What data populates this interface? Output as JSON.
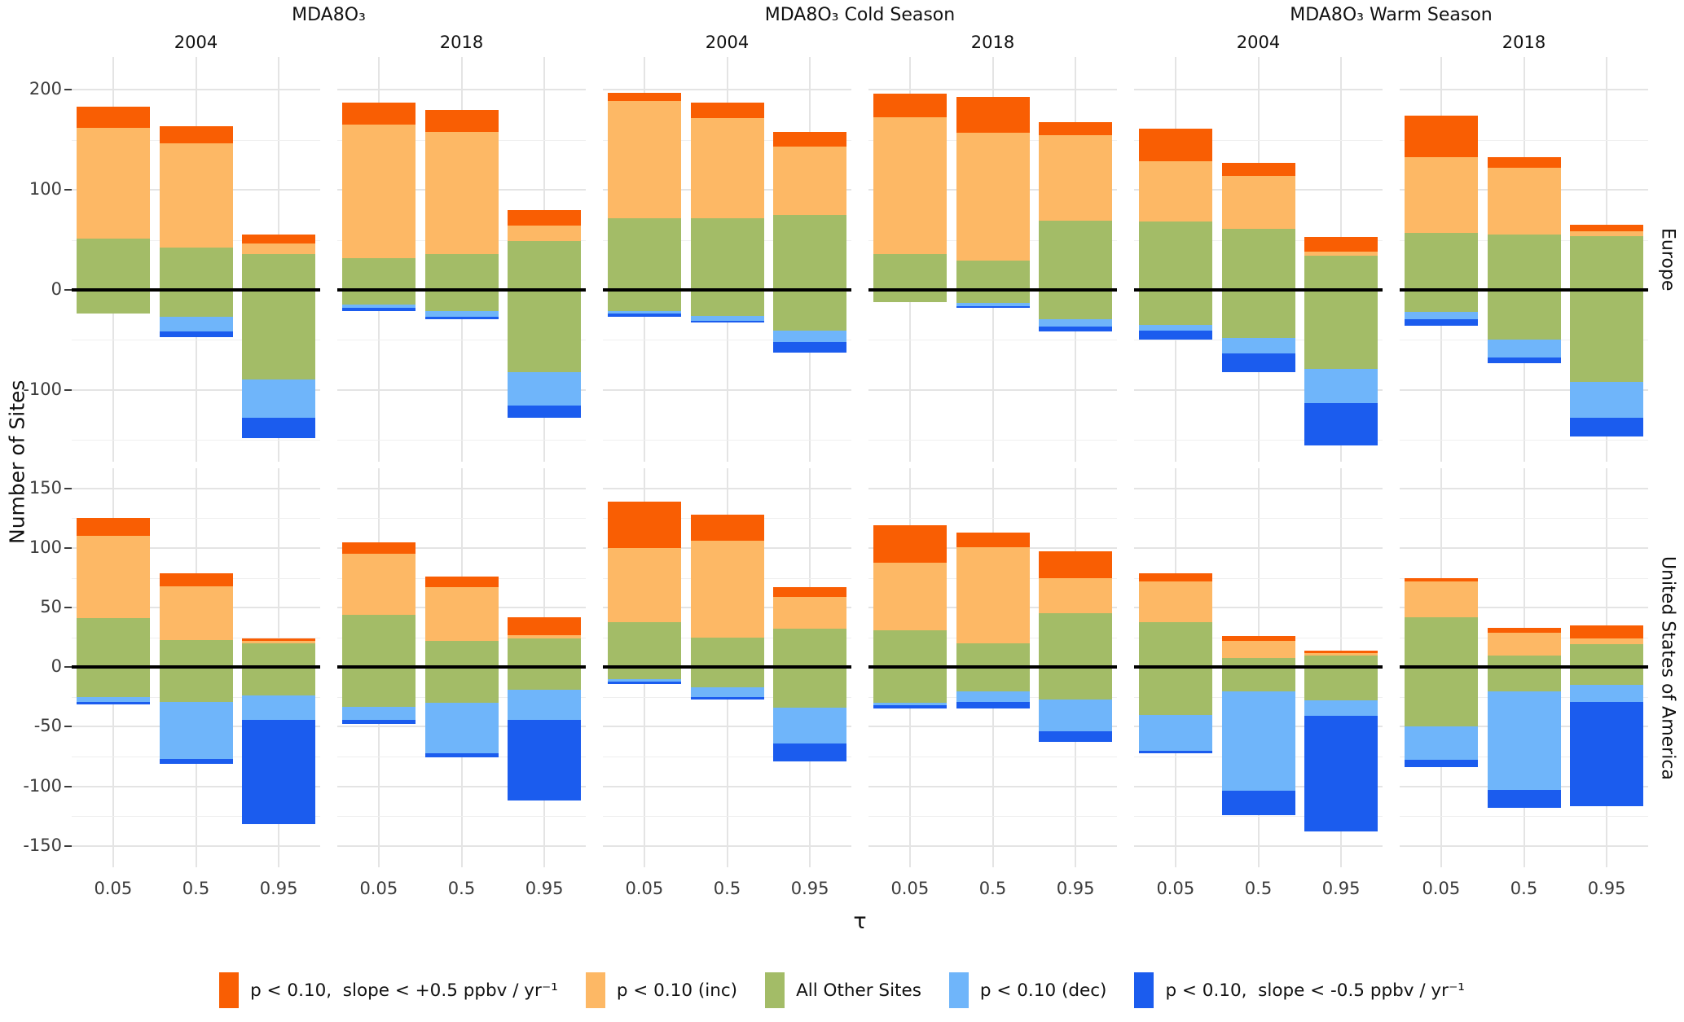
{
  "figure": {
    "column_groups": [
      "MDA8O₃",
      "MDA8O₃ Cold Season",
      "MDA8O₃ Warm Season"
    ],
    "years": [
      "2004",
      "2018",
      "2004",
      "2018",
      "2004",
      "2018"
    ],
    "row_labels": [
      "Europe",
      "United States of America"
    ],
    "y_label": "Number of Sites",
    "x_label": "τ",
    "x_ticks": [
      "0.05",
      "0.5",
      "0.95"
    ]
  },
  "colors": {
    "strong_inc": "#F95E03",
    "inc": "#FDB865",
    "other": "#A3BC67",
    "dec": "#6FB5FA",
    "strong_dec": "#1B5CEE",
    "zero_line": "#000000",
    "grid_major": "#e4e4e4",
    "grid_minor": "#efefef"
  },
  "legend": {
    "items": [
      {
        "key": "strong_inc",
        "label": "p < 0.10,  slope < +0.5 ppbv / yr⁻¹",
        "color": "#F95E03"
      },
      {
        "key": "inc",
        "label": "p < 0.10 (inc)",
        "color": "#FDB865"
      },
      {
        "key": "other",
        "label": "All Other Sites",
        "color": "#A3BC67"
      },
      {
        "key": "dec",
        "label": "p < 0.10 (dec)",
        "color": "#6FB5FA"
      },
      {
        "key": "strong_dec",
        "label": "p < 0.10,  slope < -0.5 ppbv / yr⁻¹",
        "color": "#1B5CEE"
      }
    ]
  },
  "chart_data": {
    "type": "bar",
    "variant": "diverging-stacked",
    "title": "",
    "xlabel": "τ",
    "ylabel": "Number of Sites",
    "x_categories": [
      "0.05",
      "0.5",
      "0.95"
    ],
    "segment_order_positive": [
      "other_pos",
      "inc",
      "strong_inc"
    ],
    "segment_order_negative": [
      "other_neg",
      "dec",
      "strong_dec"
    ],
    "rows": [
      {
        "name": "Europe",
        "ylim": [
          -172,
          233
        ],
        "major_ticks": [
          200,
          100,
          0,
          -100
        ],
        "minor_ticks": [
          150,
          50,
          -50,
          -150
        ]
      },
      {
        "name": "United States of America",
        "ylim": [
          -168,
          167
        ],
        "major_ticks": [
          150,
          100,
          50,
          0,
          -50,
          -100,
          -150
        ],
        "minor_ticks": [
          125,
          75,
          25,
          -25,
          -75,
          -125
        ]
      }
    ],
    "panels": [
      {
        "row": "Europe",
        "column": "MDA8O₃",
        "year": "2004",
        "bars": [
          {
            "tau": "0.05",
            "strong_inc": 21,
            "inc": 111,
            "other_pos": 51,
            "other_neg": 24,
            "dec": 0,
            "strong_dec": 0
          },
          {
            "tau": "0.5",
            "strong_inc": 17,
            "inc": 105,
            "other_pos": 42,
            "other_neg": 27,
            "dec": 15,
            "strong_dec": 5
          },
          {
            "tau": "0.95",
            "strong_inc": 9,
            "inc": 10,
            "other_pos": 36,
            "other_neg": 90,
            "dec": 38,
            "strong_dec": 20
          }
        ]
      },
      {
        "row": "Europe",
        "column": "MDA8O₃",
        "year": "2018",
        "bars": [
          {
            "tau": "0.05",
            "strong_inc": 22,
            "inc": 133,
            "other_pos": 32,
            "other_neg": 15,
            "dec": 3,
            "strong_dec": 3
          },
          {
            "tau": "0.5",
            "strong_inc": 22,
            "inc": 122,
            "other_pos": 36,
            "other_neg": 21,
            "dec": 6,
            "strong_dec": 2
          },
          {
            "tau": "0.95",
            "strong_inc": 16,
            "inc": 15,
            "other_pos": 49,
            "other_neg": 82,
            "dec": 34,
            "strong_dec": 12
          }
        ]
      },
      {
        "row": "Europe",
        "column": "MDA8O₃ Cold Season",
        "year": "2004",
        "bars": [
          {
            "tau": "0.05",
            "strong_inc": 8,
            "inc": 117,
            "other_pos": 72,
            "other_neg": 21,
            "dec": 3,
            "strong_dec": 3
          },
          {
            "tau": "0.5",
            "strong_inc": 15,
            "inc": 100,
            "other_pos": 72,
            "other_neg": 26,
            "dec": 5,
            "strong_dec": 2
          },
          {
            "tau": "0.95",
            "strong_inc": 15,
            "inc": 68,
            "other_pos": 75,
            "other_neg": 41,
            "dec": 11,
            "strong_dec": 11
          }
        ]
      },
      {
        "row": "Europe",
        "column": "MDA8O₃ Cold Season",
        "year": "2018",
        "bars": [
          {
            "tau": "0.05",
            "strong_inc": 23,
            "inc": 137,
            "other_pos": 36,
            "other_neg": 12,
            "dec": 0,
            "strong_dec": 0
          },
          {
            "tau": "0.5",
            "strong_inc": 36,
            "inc": 128,
            "other_pos": 29,
            "other_neg": 13,
            "dec": 3,
            "strong_dec": 2
          },
          {
            "tau": "0.95",
            "strong_inc": 13,
            "inc": 86,
            "other_pos": 69,
            "other_neg": 29,
            "dec": 8,
            "strong_dec": 5
          }
        ]
      },
      {
        "row": "Europe",
        "column": "MDA8O₃ Warm Season",
        "year": "2004",
        "bars": [
          {
            "tau": "0.05",
            "strong_inc": 32,
            "inc": 61,
            "other_pos": 68,
            "other_neg": 35,
            "dec": 6,
            "strong_dec": 9
          },
          {
            "tau": "0.5",
            "strong_inc": 13,
            "inc": 53,
            "other_pos": 61,
            "other_neg": 48,
            "dec": 16,
            "strong_dec": 18
          },
          {
            "tau": "0.95",
            "strong_inc": 15,
            "inc": 4,
            "other_pos": 34,
            "other_neg": 79,
            "dec": 34,
            "strong_dec": 43
          }
        ]
      },
      {
        "row": "Europe",
        "column": "MDA8O₃ Warm Season",
        "year": "2018",
        "bars": [
          {
            "tau": "0.05",
            "strong_inc": 41,
            "inc": 76,
            "other_pos": 57,
            "other_neg": 22,
            "dec": 7,
            "strong_dec": 7
          },
          {
            "tau": "0.5",
            "strong_inc": 11,
            "inc": 67,
            "other_pos": 55,
            "other_neg": 50,
            "dec": 18,
            "strong_dec": 5
          },
          {
            "tau": "0.95",
            "strong_inc": 6,
            "inc": 5,
            "other_pos": 54,
            "other_neg": 92,
            "dec": 36,
            "strong_dec": 19
          }
        ]
      },
      {
        "row": "United States of America",
        "column": "MDA8O₃",
        "year": "2004",
        "bars": [
          {
            "tau": "0.05",
            "strong_inc": 15,
            "inc": 69,
            "other_pos": 41,
            "other_neg": 25,
            "dec": 4,
            "strong_dec": 2
          },
          {
            "tau": "0.5",
            "strong_inc": 11,
            "inc": 45,
            "other_pos": 23,
            "other_neg": 29,
            "dec": 48,
            "strong_dec": 4
          },
          {
            "tau": "0.95",
            "strong_inc": 2,
            "inc": 2,
            "other_pos": 20,
            "other_neg": 24,
            "dec": 20,
            "strong_dec": 88
          }
        ]
      },
      {
        "row": "United States of America",
        "column": "MDA8O₃",
        "year": "2018",
        "bars": [
          {
            "tau": "0.05",
            "strong_inc": 10,
            "inc": 51,
            "other_pos": 44,
            "other_neg": 33,
            "dec": 11,
            "strong_dec": 4
          },
          {
            "tau": "0.5",
            "strong_inc": 9,
            "inc": 45,
            "other_pos": 22,
            "other_neg": 30,
            "dec": 42,
            "strong_dec": 4
          },
          {
            "tau": "0.95",
            "strong_inc": 15,
            "inc": 3,
            "other_pos": 24,
            "other_neg": 19,
            "dec": 25,
            "strong_dec": 68
          }
        ]
      },
      {
        "row": "United States of America",
        "column": "MDA8O₃ Cold Season",
        "year": "2004",
        "bars": [
          {
            "tau": "0.05",
            "strong_inc": 39,
            "inc": 62,
            "other_pos": 38,
            "other_neg": 10,
            "dec": 2,
            "strong_dec": 2
          },
          {
            "tau": "0.5",
            "strong_inc": 22,
            "inc": 81,
            "other_pos": 25,
            "other_neg": 17,
            "dec": 8,
            "strong_dec": 2
          },
          {
            "tau": "0.95",
            "strong_inc": 8,
            "inc": 27,
            "other_pos": 32,
            "other_neg": 34,
            "dec": 30,
            "strong_dec": 15
          }
        ]
      },
      {
        "row": "United States of America",
        "column": "MDA8O₃ Cold Season",
        "year": "2018",
        "bars": [
          {
            "tau": "0.05",
            "strong_inc": 31,
            "inc": 57,
            "other_pos": 31,
            "other_neg": 30,
            "dec": 2,
            "strong_dec": 3
          },
          {
            "tau": "0.5",
            "strong_inc": 12,
            "inc": 81,
            "other_pos": 20,
            "other_neg": 20,
            "dec": 9,
            "strong_dec": 6
          },
          {
            "tau": "0.95",
            "strong_inc": 22,
            "inc": 30,
            "other_pos": 45,
            "other_neg": 27,
            "dec": 27,
            "strong_dec": 9
          }
        ]
      },
      {
        "row": "United States of America",
        "column": "MDA8O₃ Warm Season",
        "year": "2004",
        "bars": [
          {
            "tau": "0.05",
            "strong_inc": 7,
            "inc": 34,
            "other_pos": 38,
            "other_neg": 40,
            "dec": 30,
            "strong_dec": 2
          },
          {
            "tau": "0.5",
            "strong_inc": 4,
            "inc": 14,
            "other_pos": 8,
            "other_neg": 20,
            "dec": 84,
            "strong_dec": 20
          },
          {
            "tau": "0.95",
            "strong_inc": 2,
            "inc": 2,
            "other_pos": 10,
            "other_neg": 28,
            "dec": 13,
            "strong_dec": 97
          }
        ]
      },
      {
        "row": "United States of America",
        "column": "MDA8O₃ Warm Season",
        "year": "2018",
        "bars": [
          {
            "tau": "0.05",
            "strong_inc": 3,
            "inc": 30,
            "other_pos": 42,
            "other_neg": 50,
            "dec": 28,
            "strong_dec": 6
          },
          {
            "tau": "0.5",
            "strong_inc": 4,
            "inc": 19,
            "other_pos": 10,
            "other_neg": 20,
            "dec": 83,
            "strong_dec": 15
          },
          {
            "tau": "0.95",
            "strong_inc": 11,
            "inc": 5,
            "other_pos": 19,
            "other_neg": 15,
            "dec": 14,
            "strong_dec": 88
          }
        ]
      }
    ]
  }
}
